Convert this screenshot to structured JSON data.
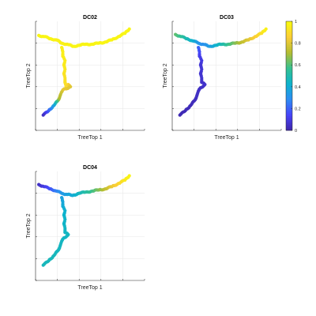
{
  "chart_data": {
    "type": "scatter",
    "subtype": "trajectory-colored-by-value",
    "colormap": [
      "#3e26a8",
      "#4743f9",
      "#2d8cf3",
      "#0db3cd",
      "#35c190",
      "#b4bd31",
      "#fbcd37",
      "#f9fb0e"
    ],
    "panels": [
      {
        "title": "DC02",
        "xlabel": "TreeTop 1",
        "ylabel": "TreeTop 2",
        "grid": true,
        "ticks_labeled": false,
        "points": [
          {
            "x": 0.03,
            "y": 0.87,
            "v": 0.98
          },
          {
            "x": 0.08,
            "y": 0.86,
            "v": 0.98
          },
          {
            "x": 0.14,
            "y": 0.84,
            "v": 0.98
          },
          {
            "x": 0.19,
            "y": 0.83,
            "v": 0.97
          },
          {
            "x": 0.24,
            "y": 0.8,
            "v": 0.97
          },
          {
            "x": 0.29,
            "y": 0.79,
            "v": 0.97
          },
          {
            "x": 0.34,
            "y": 0.77,
            "v": 0.98
          },
          {
            "x": 0.4,
            "y": 0.78,
            "v": 0.98
          },
          {
            "x": 0.46,
            "y": 0.79,
            "v": 0.98
          },
          {
            "x": 0.52,
            "y": 0.79,
            "v": 0.98
          },
          {
            "x": 0.58,
            "y": 0.8,
            "v": 0.98
          },
          {
            "x": 0.64,
            "y": 0.81,
            "v": 0.98
          },
          {
            "x": 0.7,
            "y": 0.83,
            "v": 0.98
          },
          {
            "x": 0.76,
            "y": 0.86,
            "v": 0.98
          },
          {
            "x": 0.82,
            "y": 0.89,
            "v": 0.98
          },
          {
            "x": 0.86,
            "y": 0.93,
            "v": 0.98
          },
          {
            "x": 0.24,
            "y": 0.76,
            "v": 0.97
          },
          {
            "x": 0.25,
            "y": 0.72,
            "v": 0.96
          },
          {
            "x": 0.25,
            "y": 0.68,
            "v": 0.96
          },
          {
            "x": 0.27,
            "y": 0.64,
            "v": 0.95
          },
          {
            "x": 0.26,
            "y": 0.6,
            "v": 0.95
          },
          {
            "x": 0.27,
            "y": 0.56,
            "v": 0.94
          },
          {
            "x": 0.26,
            "y": 0.52,
            "v": 0.93
          },
          {
            "x": 0.27,
            "y": 0.48,
            "v": 0.92
          },
          {
            "x": 0.27,
            "y": 0.44,
            "v": 0.92
          },
          {
            "x": 0.28,
            "y": 0.4,
            "v": 0.91
          },
          {
            "x": 0.3,
            "y": 0.42,
            "v": 0.88
          },
          {
            "x": 0.32,
            "y": 0.4,
            "v": 0.8
          },
          {
            "x": 0.25,
            "y": 0.37,
            "v": 0.82
          },
          {
            "x": 0.23,
            "y": 0.33,
            "v": 0.75
          },
          {
            "x": 0.21,
            "y": 0.28,
            "v": 0.7
          },
          {
            "x": 0.17,
            "y": 0.23,
            "v": 0.4
          },
          {
            "x": 0.12,
            "y": 0.18,
            "v": 0.22
          },
          {
            "x": 0.07,
            "y": 0.14,
            "v": 0.05
          }
        ]
      },
      {
        "title": "DC03",
        "xlabel": "TreeTop 1",
        "ylabel": "TreeTop 2",
        "grid": true,
        "ticks_labeled": false,
        "points": [
          {
            "x": 0.03,
            "y": 0.88,
            "v": 0.62
          },
          {
            "x": 0.08,
            "y": 0.86,
            "v": 0.56
          },
          {
            "x": 0.14,
            "y": 0.84,
            "v": 0.48
          },
          {
            "x": 0.19,
            "y": 0.82,
            "v": 0.42
          },
          {
            "x": 0.24,
            "y": 0.8,
            "v": 0.33
          },
          {
            "x": 0.28,
            "y": 0.79,
            "v": 0.3
          },
          {
            "x": 0.34,
            "y": 0.77,
            "v": 0.34
          },
          {
            "x": 0.4,
            "y": 0.78,
            "v": 0.42
          },
          {
            "x": 0.46,
            "y": 0.79,
            "v": 0.5
          },
          {
            "x": 0.52,
            "y": 0.79,
            "v": 0.58
          },
          {
            "x": 0.58,
            "y": 0.8,
            "v": 0.66
          },
          {
            "x": 0.64,
            "y": 0.81,
            "v": 0.74
          },
          {
            "x": 0.7,
            "y": 0.83,
            "v": 0.8
          },
          {
            "x": 0.76,
            "y": 0.86,
            "v": 0.86
          },
          {
            "x": 0.82,
            "y": 0.89,
            "v": 0.92
          },
          {
            "x": 0.86,
            "y": 0.93,
            "v": 0.97
          },
          {
            "x": 0.24,
            "y": 0.76,
            "v": 0.22
          },
          {
            "x": 0.25,
            "y": 0.72,
            "v": 0.16
          },
          {
            "x": 0.25,
            "y": 0.68,
            "v": 0.12
          },
          {
            "x": 0.27,
            "y": 0.64,
            "v": 0.1
          },
          {
            "x": 0.26,
            "y": 0.6,
            "v": 0.08
          },
          {
            "x": 0.27,
            "y": 0.56,
            "v": 0.08
          },
          {
            "x": 0.26,
            "y": 0.52,
            "v": 0.07
          },
          {
            "x": 0.27,
            "y": 0.48,
            "v": 0.07
          },
          {
            "x": 0.27,
            "y": 0.44,
            "v": 0.06
          },
          {
            "x": 0.3,
            "y": 0.42,
            "v": 0.06
          },
          {
            "x": 0.25,
            "y": 0.38,
            "v": 0.05
          },
          {
            "x": 0.23,
            "y": 0.33,
            "v": 0.05
          },
          {
            "x": 0.21,
            "y": 0.28,
            "v": 0.04
          },
          {
            "x": 0.17,
            "y": 0.23,
            "v": 0.03
          },
          {
            "x": 0.12,
            "y": 0.18,
            "v": 0.03
          },
          {
            "x": 0.07,
            "y": 0.14,
            "v": 0.02
          }
        ]
      },
      {
        "title": "DC04",
        "xlabel": "TreeTop 1",
        "ylabel": "TreeTop 2",
        "grid": true,
        "ticks_labeled": false,
        "points": [
          {
            "x": 0.03,
            "y": 0.88,
            "v": 0.05
          },
          {
            "x": 0.08,
            "y": 0.86,
            "v": 0.1
          },
          {
            "x": 0.14,
            "y": 0.84,
            "v": 0.18
          },
          {
            "x": 0.19,
            "y": 0.82,
            "v": 0.26
          },
          {
            "x": 0.24,
            "y": 0.8,
            "v": 0.33
          },
          {
            "x": 0.28,
            "y": 0.79,
            "v": 0.36
          },
          {
            "x": 0.34,
            "y": 0.78,
            "v": 0.4
          },
          {
            "x": 0.4,
            "y": 0.8,
            "v": 0.46
          },
          {
            "x": 0.46,
            "y": 0.81,
            "v": 0.52
          },
          {
            "x": 0.52,
            "y": 0.82,
            "v": 0.58
          },
          {
            "x": 0.58,
            "y": 0.83,
            "v": 0.66
          },
          {
            "x": 0.64,
            "y": 0.84,
            "v": 0.74
          },
          {
            "x": 0.7,
            "y": 0.86,
            "v": 0.82
          },
          {
            "x": 0.76,
            "y": 0.89,
            "v": 0.88
          },
          {
            "x": 0.82,
            "y": 0.92,
            "v": 0.94
          },
          {
            "x": 0.86,
            "y": 0.96,
            "v": 0.98
          },
          {
            "x": 0.24,
            "y": 0.76,
            "v": 0.36
          },
          {
            "x": 0.25,
            "y": 0.72,
            "v": 0.38
          },
          {
            "x": 0.25,
            "y": 0.68,
            "v": 0.4
          },
          {
            "x": 0.27,
            "y": 0.64,
            "v": 0.42
          },
          {
            "x": 0.26,
            "y": 0.6,
            "v": 0.43
          },
          {
            "x": 0.27,
            "y": 0.56,
            "v": 0.44
          },
          {
            "x": 0.26,
            "y": 0.52,
            "v": 0.44
          },
          {
            "x": 0.27,
            "y": 0.48,
            "v": 0.45
          },
          {
            "x": 0.27,
            "y": 0.44,
            "v": 0.45
          },
          {
            "x": 0.3,
            "y": 0.42,
            "v": 0.46
          },
          {
            "x": 0.25,
            "y": 0.38,
            "v": 0.45
          },
          {
            "x": 0.23,
            "y": 0.33,
            "v": 0.46
          },
          {
            "x": 0.21,
            "y": 0.28,
            "v": 0.46
          },
          {
            "x": 0.17,
            "y": 0.23,
            "v": 0.47
          },
          {
            "x": 0.12,
            "y": 0.18,
            "v": 0.47
          },
          {
            "x": 0.07,
            "y": 0.14,
            "v": 0.47
          }
        ]
      }
    ],
    "colorbar": {
      "range": [
        0,
        1
      ],
      "ticks": [
        "0",
        "0.2",
        "0.4",
        "0.6",
        "0.8",
        "1"
      ],
      "attached_to": "DC03",
      "placement": "right"
    }
  }
}
